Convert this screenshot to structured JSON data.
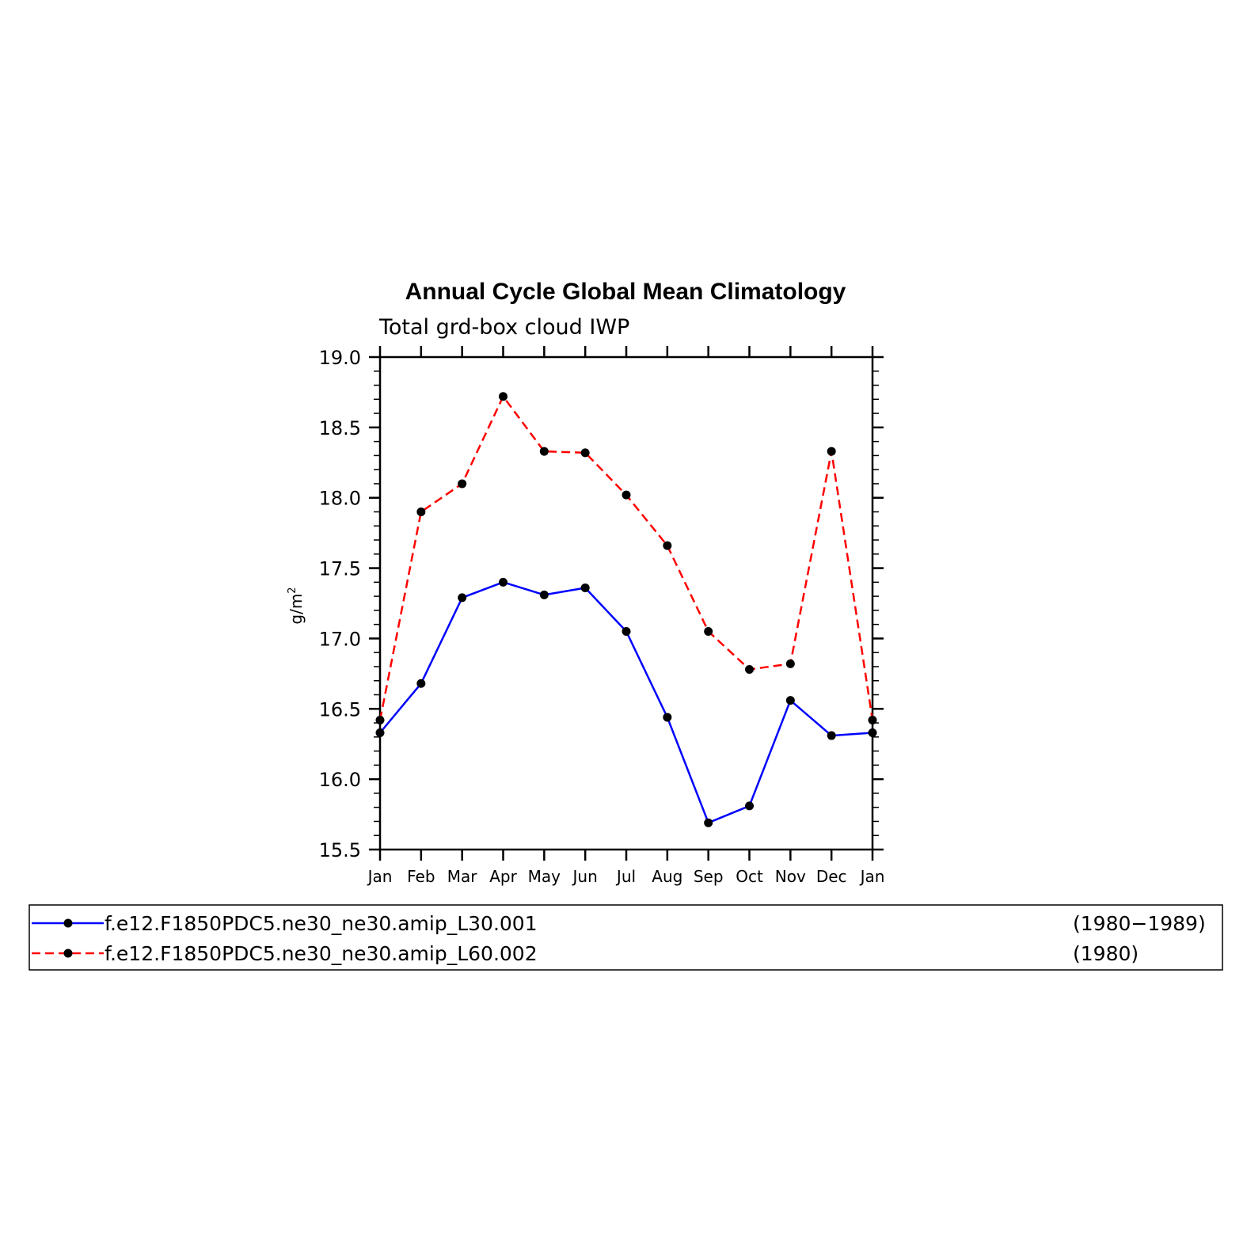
{
  "chart_data": {
    "type": "line",
    "title": "Annual Cycle Global Mean Climatology",
    "subtitle": "Total grd-box cloud IWP",
    "ylabel": "g/m",
    "ylabel_superscript": "2",
    "ylim": [
      15.5,
      19.0
    ],
    "yticks": [
      "19.0",
      "18.5",
      "18.0",
      "17.5",
      "17.0",
      "16.5",
      "16.0",
      "15.5"
    ],
    "categories": [
      "Jan",
      "Feb",
      "Mar",
      "Apr",
      "May",
      "Jun",
      "Jul",
      "Aug",
      "Sep",
      "Oct",
      "Nov",
      "Dec",
      "Jan"
    ],
    "series": [
      {
        "name": "f.e12.F1850PDC5.ne30_ne30.amip_L30.001",
        "period": "(1980−1989)",
        "color": "#0000ff",
        "dash": "solid",
        "values": [
          16.33,
          16.68,
          17.29,
          17.4,
          17.31,
          17.36,
          17.05,
          16.44,
          15.69,
          15.81,
          16.56,
          16.31,
          16.33
        ]
      },
      {
        "name": "f.e12.F1850PDC5.ne30_ne30.amip_L60.002",
        "period": "(1980)",
        "color": "#ff0000",
        "dash": "dashed",
        "values": [
          16.42,
          17.9,
          18.1,
          18.72,
          18.33,
          18.32,
          18.02,
          17.66,
          17.05,
          16.78,
          16.82,
          18.33,
          16.42
        ]
      }
    ],
    "marker_color": "#000000",
    "grid": false,
    "legend": "bottom"
  }
}
